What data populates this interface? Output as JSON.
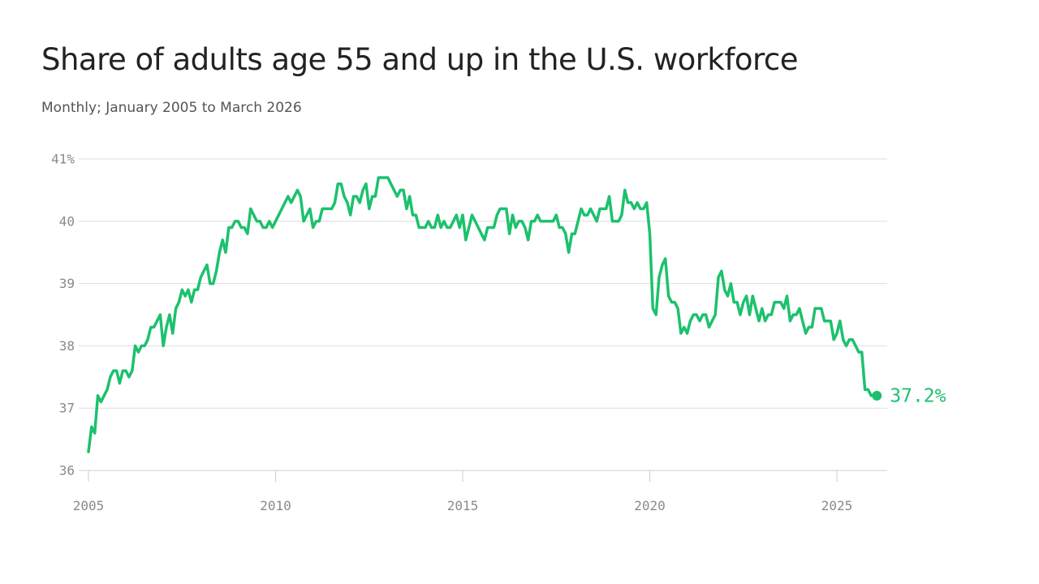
{
  "title": "Share of adults age 55 and up in the U.S. workforce",
  "subtitle": "Monthly; January 2005 to March 2026",
  "colors": {
    "line": "#1cc16d",
    "grid": "#dddddd",
    "axis_text": "#8a8a8a",
    "title": "#222222",
    "subtitle": "#555555"
  },
  "chart_data": {
    "type": "line",
    "title": "Share of adults age 55 and up in the U.S. workforce",
    "subtitle": "Monthly; January 2005 to March 2026",
    "xlabel": "",
    "ylabel": "",
    "x_ticks": [
      "2005",
      "2010",
      "2015",
      "2020",
      "2025"
    ],
    "y_ticks": [
      "41%",
      "40",
      "39",
      "38",
      "37",
      "36"
    ],
    "ylim": [
      36,
      41
    ],
    "xlim": [
      "2005-01",
      "2026-03"
    ],
    "grid": true,
    "end_label": "37.2%",
    "series": [
      {
        "x_start": "2005-01",
        "frequency": "monthly",
        "values": [
          36.3,
          36.7,
          36.6,
          37.2,
          37.1,
          37.2,
          37.3,
          37.5,
          37.6,
          37.6,
          37.4,
          37.6,
          37.6,
          37.5,
          37.6,
          38.0,
          37.9,
          38.0,
          38.0,
          38.1,
          38.3,
          38.3,
          38.4,
          38.5,
          38.0,
          38.3,
          38.5,
          38.2,
          38.6,
          38.7,
          38.9,
          38.8,
          38.9,
          38.7,
          38.9,
          38.9,
          39.1,
          39.2,
          39.3,
          39.0,
          39.0,
          39.2,
          39.5,
          39.7,
          39.5,
          39.9,
          39.9,
          40.0,
          40.0,
          39.9,
          39.9,
          39.8,
          40.2,
          40.1,
          40.0,
          40.0,
          39.9,
          39.9,
          40.0,
          39.9,
          40.0,
          40.1,
          40.2,
          40.3,
          40.4,
          40.3,
          40.4,
          40.5,
          40.4,
          40.0,
          40.1,
          40.2,
          39.9,
          40.0,
          40.0,
          40.2,
          40.2,
          40.2,
          40.2,
          40.3,
          40.6,
          40.6,
          40.4,
          40.3,
          40.1,
          40.4,
          40.4,
          40.3,
          40.5,
          40.6,
          40.2,
          40.4,
          40.4,
          40.7,
          40.7,
          40.7,
          40.7,
          40.6,
          40.5,
          40.4,
          40.5,
          40.5,
          40.2,
          40.4,
          40.1,
          40.1,
          39.9,
          39.9,
          39.9,
          40.0,
          39.9,
          39.9,
          40.1,
          39.9,
          40.0,
          39.9,
          39.9,
          40.0,
          40.1,
          39.9,
          40.1,
          39.7,
          39.9,
          40.1,
          40.0,
          39.9,
          39.8,
          39.7,
          39.9,
          39.9,
          39.9,
          40.1,
          40.2,
          40.2,
          40.2,
          39.8,
          40.1,
          39.9,
          40.0,
          40.0,
          39.9,
          39.7,
          40.0,
          40.0,
          40.1,
          40.0,
          40.0,
          40.0,
          40.0,
          40.0,
          40.1,
          39.9,
          39.9,
          39.8,
          39.5,
          39.8,
          39.8,
          40.0,
          40.2,
          40.1,
          40.1,
          40.2,
          40.1,
          40.0,
          40.2,
          40.2,
          40.2,
          40.4,
          40.0,
          40.0,
          40.0,
          40.1,
          40.5,
          40.3,
          40.3,
          40.2,
          40.3,
          40.2,
          40.2,
          40.3,
          39.8,
          38.6,
          38.5,
          39.1,
          39.3,
          39.4,
          38.8,
          38.7,
          38.7,
          38.6,
          38.2,
          38.3,
          38.2,
          38.4,
          38.5,
          38.5,
          38.4,
          38.5,
          38.5,
          38.3,
          38.4,
          38.5,
          39.1,
          39.2,
          38.9,
          38.8,
          39.0,
          38.7,
          38.7,
          38.5,
          38.7,
          38.8,
          38.5,
          38.8,
          38.6,
          38.4,
          38.6,
          38.4,
          38.5,
          38.5,
          38.7,
          38.7,
          38.7,
          38.6,
          38.8,
          38.4,
          38.5,
          38.5,
          38.6,
          38.4,
          38.2,
          38.3,
          38.3,
          38.6,
          38.6,
          38.6,
          38.4,
          38.4,
          38.4,
          38.1,
          38.2,
          38.4,
          38.1,
          38.0,
          38.1,
          38.1,
          38.0,
          37.9,
          37.9,
          37.3,
          37.3,
          37.2
        ]
      }
    ]
  }
}
